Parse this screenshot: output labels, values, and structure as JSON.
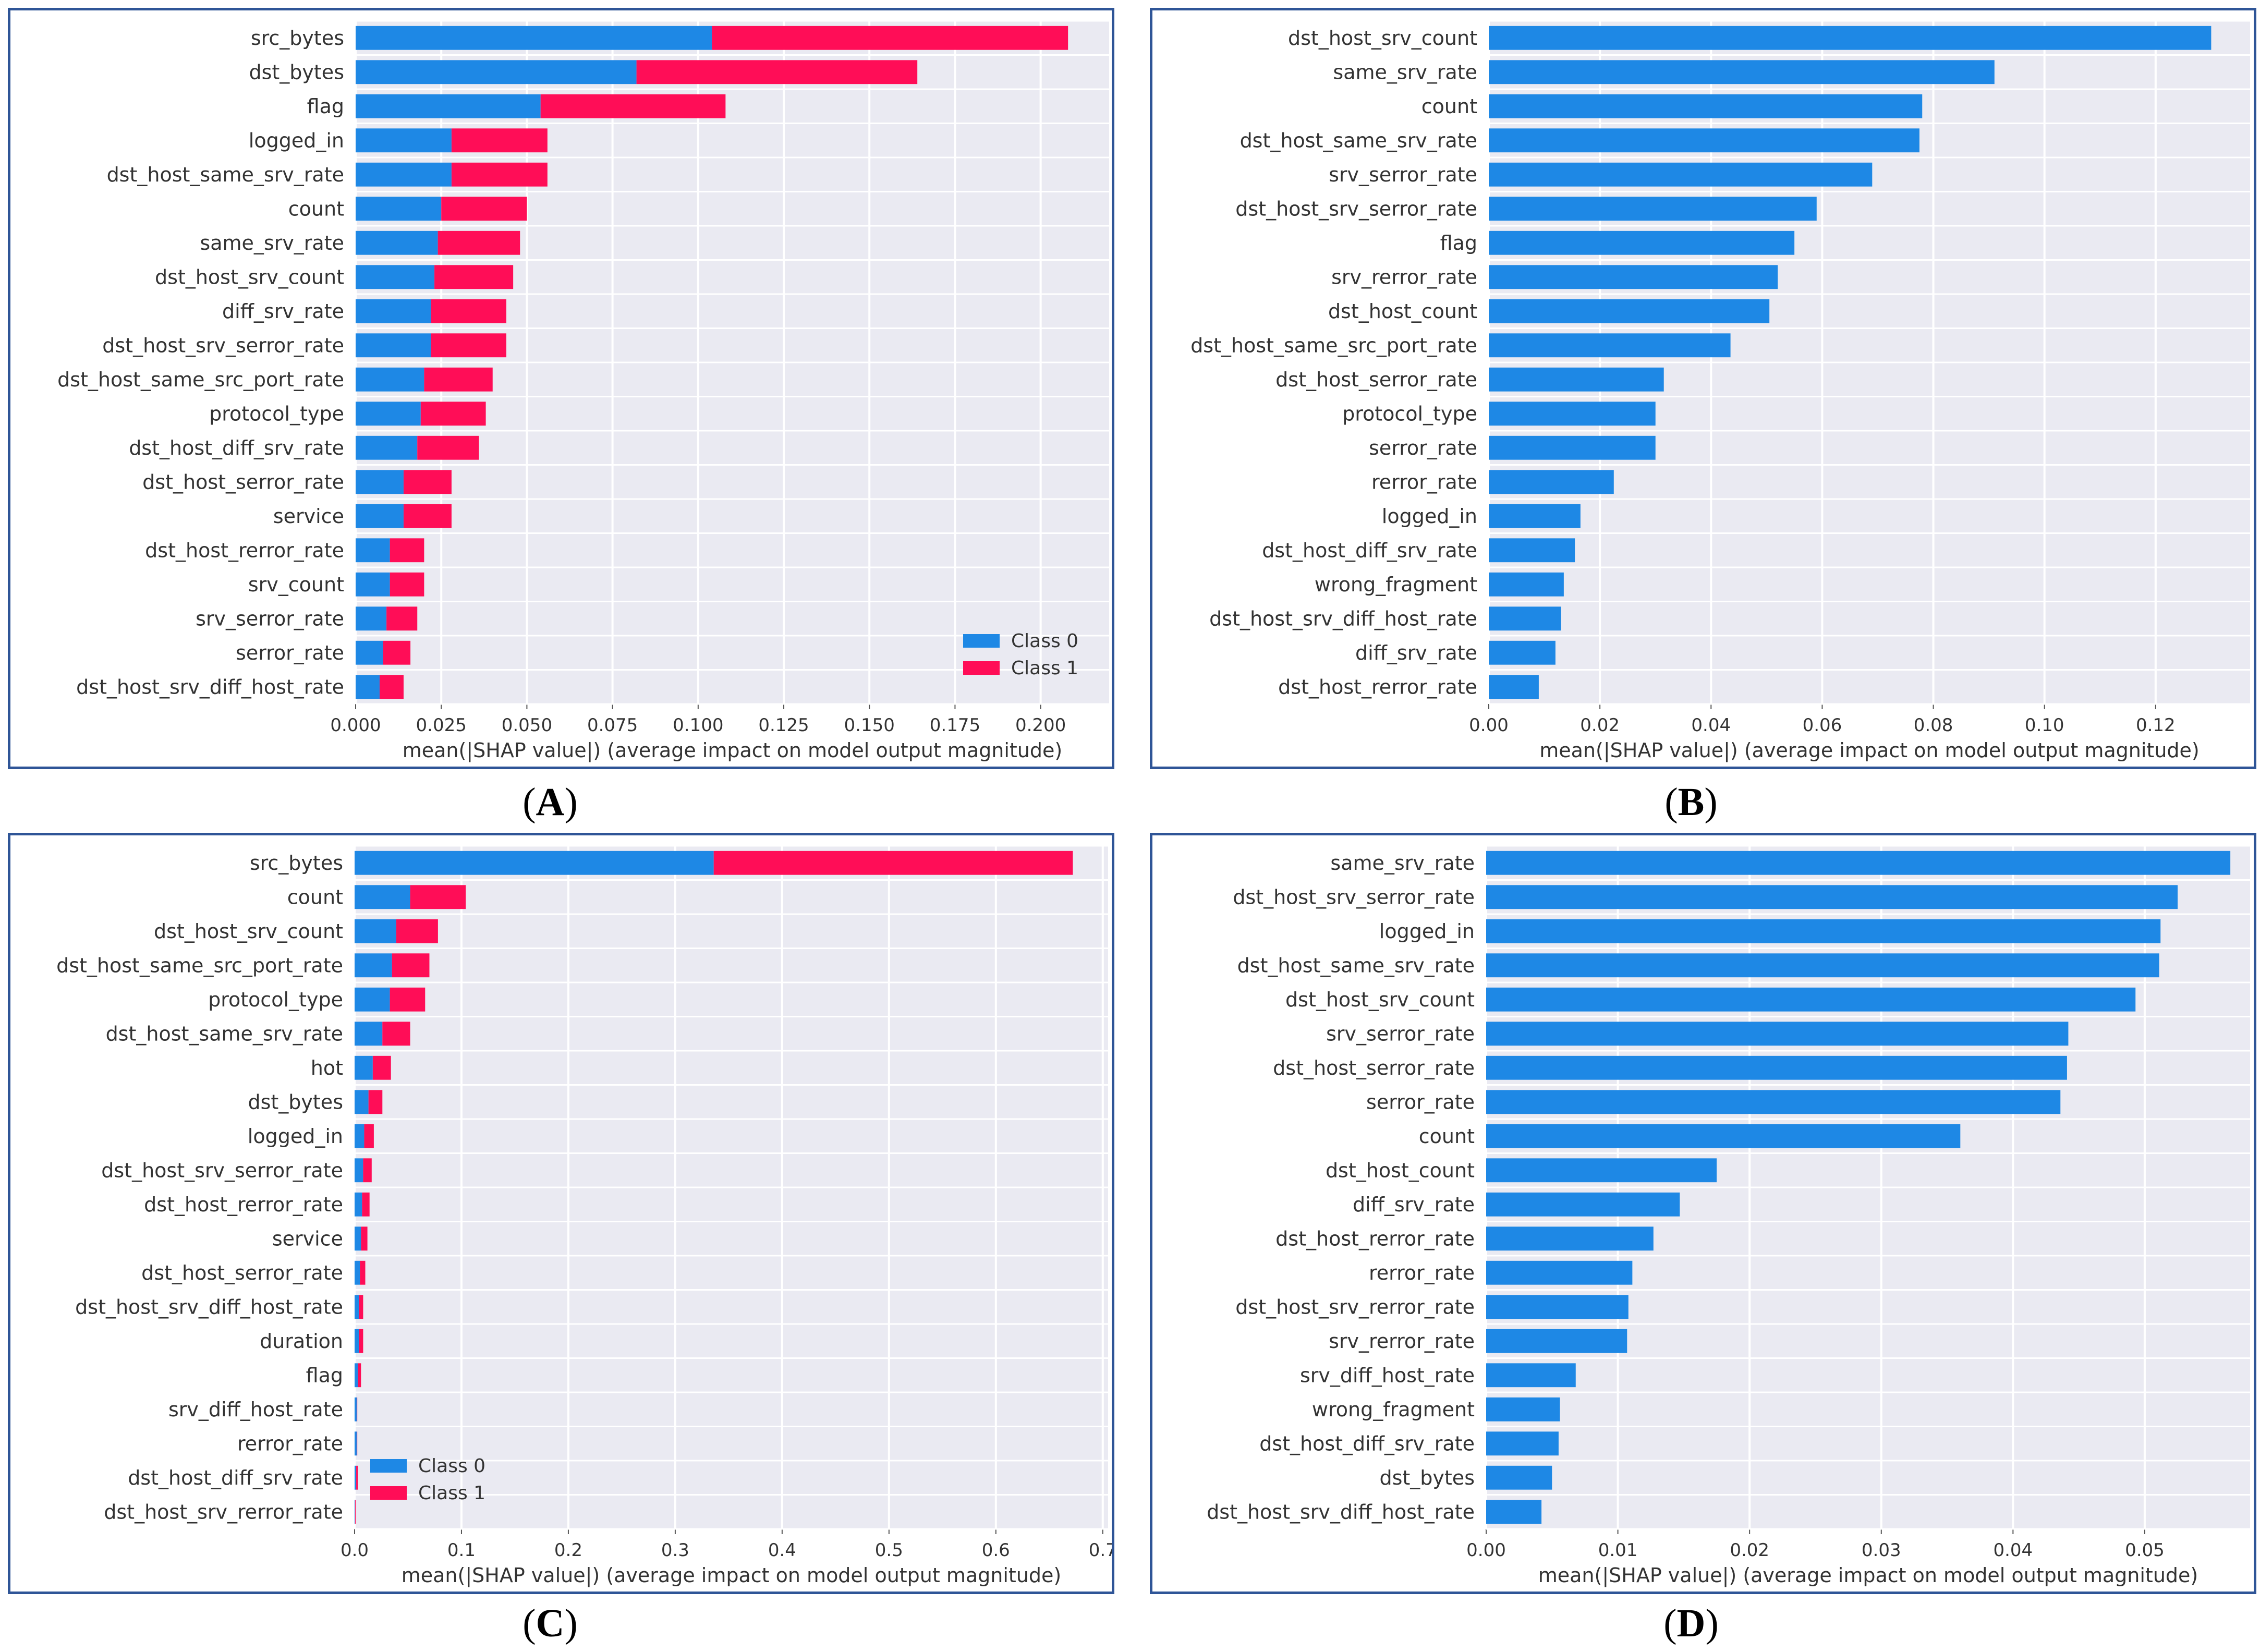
{
  "colors": {
    "class0": "#1e88e5",
    "class1": "#ff0d57",
    "plot_bg": "#eaeaf2",
    "frame": "#2f5597"
  },
  "chart_data": [
    {
      "id": "A",
      "panel_label": "A",
      "type": "bar",
      "orientation": "horizontal",
      "stacked": true,
      "xlabel": "mean(|SHAP value|) (average impact on model output magnitude)",
      "xlim": [
        0,
        0.22
      ],
      "xticks": [
        "0.000",
        "0.025",
        "0.050",
        "0.075",
        "0.100",
        "0.125",
        "0.150",
        "0.175",
        "0.200"
      ],
      "xtick_values": [
        0,
        0.025,
        0.05,
        0.075,
        0.1,
        0.125,
        0.15,
        0.175,
        0.2
      ],
      "grid": true,
      "legend": "bottom-right",
      "categories": [
        "src_bytes",
        "dst_bytes",
        "flag",
        "logged_in",
        "dst_host_same_srv_rate",
        "count",
        "same_srv_rate",
        "dst_host_srv_count",
        "diff_srv_rate",
        "dst_host_srv_serror_rate",
        "dst_host_same_src_port_rate",
        "protocol_type",
        "dst_host_diff_srv_rate",
        "dst_host_serror_rate",
        "service",
        "dst_host_rerror_rate",
        "srv_count",
        "srv_serror_rate",
        "serror_rate",
        "dst_host_srv_diff_host_rate"
      ],
      "series": [
        {
          "name": "Class 0",
          "color": "#1e88e5",
          "values": [
            0.104,
            0.082,
            0.054,
            0.028,
            0.028,
            0.025,
            0.024,
            0.023,
            0.022,
            0.022,
            0.02,
            0.019,
            0.018,
            0.014,
            0.014,
            0.01,
            0.01,
            0.009,
            0.008,
            0.007
          ]
        },
        {
          "name": "Class 1",
          "color": "#ff0d57",
          "values": [
            0.104,
            0.082,
            0.054,
            0.028,
            0.028,
            0.025,
            0.024,
            0.023,
            0.022,
            0.022,
            0.02,
            0.019,
            0.018,
            0.014,
            0.014,
            0.01,
            0.01,
            0.009,
            0.008,
            0.007
          ]
        }
      ]
    },
    {
      "id": "B",
      "panel_label": "B",
      "type": "bar",
      "orientation": "horizontal",
      "stacked": false,
      "xlabel": "mean(|SHAP value|) (average impact on model output magnitude)",
      "xlim": [
        0,
        0.137
      ],
      "xticks": [
        "0.00",
        "0.02",
        "0.04",
        "0.06",
        "0.08",
        "0.10",
        "0.12"
      ],
      "xtick_values": [
        0,
        0.02,
        0.04,
        0.06,
        0.08,
        0.1,
        0.12
      ],
      "grid": true,
      "legend": "none",
      "categories": [
        "dst_host_srv_count",
        "same_srv_rate",
        "count",
        "dst_host_same_srv_rate",
        "srv_serror_rate",
        "dst_host_srv_serror_rate",
        "flag",
        "srv_rerror_rate",
        "dst_host_count",
        "dst_host_same_src_port_rate",
        "dst_host_serror_rate",
        "protocol_type",
        "serror_rate",
        "rerror_rate",
        "logged_in",
        "dst_host_diff_srv_rate",
        "wrong_fragment",
        "dst_host_srv_diff_host_rate",
        "diff_srv_rate",
        "dst_host_rerror_rate"
      ],
      "series": [
        {
          "color": "#1e88e5",
          "values": [
            0.13,
            0.091,
            0.078,
            0.0775,
            0.069,
            0.059,
            0.055,
            0.052,
            0.0505,
            0.0435,
            0.0315,
            0.03,
            0.03,
            0.0225,
            0.0165,
            0.0155,
            0.0135,
            0.013,
            0.012,
            0.009
          ]
        }
      ]
    },
    {
      "id": "C",
      "panel_label": "C",
      "type": "bar",
      "orientation": "horizontal",
      "stacked": true,
      "xlabel": "mean(|SHAP value|) (average impact on model output magnitude)",
      "xlim": [
        0,
        0.705
      ],
      "xticks": [
        "0.0",
        "0.1",
        "0.2",
        "0.3",
        "0.4",
        "0.5",
        "0.6",
        "0.7"
      ],
      "xtick_values": [
        0,
        0.1,
        0.2,
        0.3,
        0.4,
        0.5,
        0.6,
        0.7
      ],
      "grid": true,
      "legend": "bottom-left",
      "categories": [
        "src_bytes",
        "count",
        "dst_host_srv_count",
        "dst_host_same_src_port_rate",
        "protocol_type",
        "dst_host_same_srv_rate",
        "hot",
        "dst_bytes",
        "logged_in",
        "dst_host_srv_serror_rate",
        "dst_host_rerror_rate",
        "service",
        "dst_host_serror_rate",
        "dst_host_srv_diff_host_rate",
        "duration",
        "flag",
        "srv_diff_host_rate",
        "rerror_rate",
        "dst_host_diff_srv_rate",
        "dst_host_srv_rerror_rate"
      ],
      "series": [
        {
          "name": "Class 0",
          "color": "#1e88e5",
          "values": [
            0.336,
            0.052,
            0.039,
            0.035,
            0.033,
            0.026,
            0.017,
            0.013,
            0.009,
            0.008,
            0.007,
            0.006,
            0.005,
            0.004,
            0.004,
            0.003,
            0.002,
            0.002,
            0.0015,
            0.0005
          ]
        },
        {
          "name": "Class 1",
          "color": "#ff0d57",
          "values": [
            0.336,
            0.052,
            0.039,
            0.035,
            0.033,
            0.026,
            0.017,
            0.013,
            0.009,
            0.008,
            0.007,
            0.006,
            0.005,
            0.004,
            0.004,
            0.003,
            0.0005,
            0.0005,
            0.0015,
            0.0005
          ]
        }
      ]
    },
    {
      "id": "D",
      "panel_label": "D",
      "type": "bar",
      "orientation": "horizontal",
      "stacked": false,
      "xlabel": "mean(|SHAP value|) (average impact on model output magnitude)",
      "xlim": [
        0,
        0.058
      ],
      "xticks": [
        "0.00",
        "0.01",
        "0.02",
        "0.03",
        "0.04",
        "0.05"
      ],
      "xtick_values": [
        0,
        0.01,
        0.02,
        0.03,
        0.04,
        0.05
      ],
      "grid": true,
      "legend": "none",
      "categories": [
        "same_srv_rate",
        "dst_host_srv_serror_rate",
        "logged_in",
        "dst_host_same_srv_rate",
        "dst_host_srv_count",
        "srv_serror_rate",
        "dst_host_serror_rate",
        "serror_rate",
        "count",
        "dst_host_count",
        "diff_srv_rate",
        "dst_host_rerror_rate",
        "rerror_rate",
        "dst_host_srv_rerror_rate",
        "srv_rerror_rate",
        "srv_diff_host_rate",
        "wrong_fragment",
        "dst_host_diff_srv_rate",
        "dst_bytes",
        "dst_host_srv_diff_host_rate"
      ],
      "series": [
        {
          "color": "#1e88e5",
          "values": [
            0.0565,
            0.0525,
            0.0512,
            0.0511,
            0.0493,
            0.0442,
            0.0441,
            0.0436,
            0.036,
            0.0175,
            0.0147,
            0.0127,
            0.0111,
            0.0108,
            0.0107,
            0.0068,
            0.0056,
            0.0055,
            0.005,
            0.0042
          ]
        }
      ]
    }
  ]
}
